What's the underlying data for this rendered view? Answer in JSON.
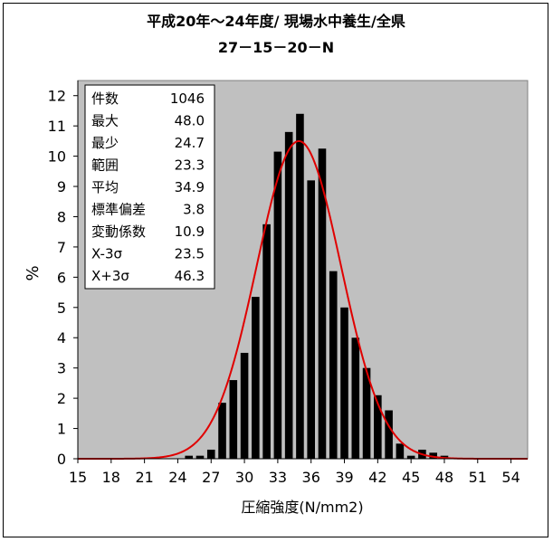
{
  "chart_data": {
    "type": "bar",
    "title": "平成20年～24年度/ 現場水中養生/全県",
    "subtitle": "27－15－20－N",
    "xlabel": "圧縮強度(N/mm2)",
    "ylabel": "%",
    "xlim": [
      15,
      55.5
    ],
    "ylim": [
      0,
      12.5
    ],
    "xticks": [
      15,
      18,
      21,
      24,
      27,
      30,
      33,
      36,
      39,
      42,
      45,
      48,
      51,
      54
    ],
    "yticks": [
      0,
      1,
      2,
      3,
      4,
      5,
      6,
      7,
      8,
      9,
      10,
      11,
      12
    ],
    "bin_width": 1,
    "grid": false,
    "plot_background": "#c0c0c0",
    "series": [
      {
        "type": "bar",
        "color": "#000000",
        "x": [
          25,
          26,
          27,
          28,
          29,
          30,
          31,
          32,
          33,
          34,
          35,
          36,
          37,
          38,
          39,
          40,
          41,
          42,
          43,
          44,
          45,
          46,
          47,
          48
        ],
        "values": [
          0.1,
          0.1,
          0.3,
          1.85,
          2.6,
          3.5,
          5.35,
          7.75,
          10.15,
          10.8,
          11.4,
          9.2,
          10.25,
          6.2,
          5.0,
          4.0,
          3.0,
          2.1,
          1.6,
          0.5,
          0.1,
          0.3,
          0.2,
          0.1
        ]
      },
      {
        "type": "line",
        "color": "#e00000",
        "distribution": "normal",
        "mean": 34.9,
        "sd": 3.8
      }
    ],
    "stats_box": {
      "position": "top-left",
      "rows": [
        {
          "label": "件数",
          "value": "1046"
        },
        {
          "label": "最大",
          "value": "48.0"
        },
        {
          "label": "最少",
          "value": "24.7"
        },
        {
          "label": "範囲",
          "value": "23.3"
        },
        {
          "label": "平均",
          "value": "34.9"
        },
        {
          "label": "標準偏差",
          "value": "3.8"
        },
        {
          "label": "変動係数",
          "value": "10.9"
        },
        {
          "label": "X-3σ",
          "value": "23.5"
        },
        {
          "label": "X+3σ",
          "value": "46.3"
        }
      ]
    }
  }
}
